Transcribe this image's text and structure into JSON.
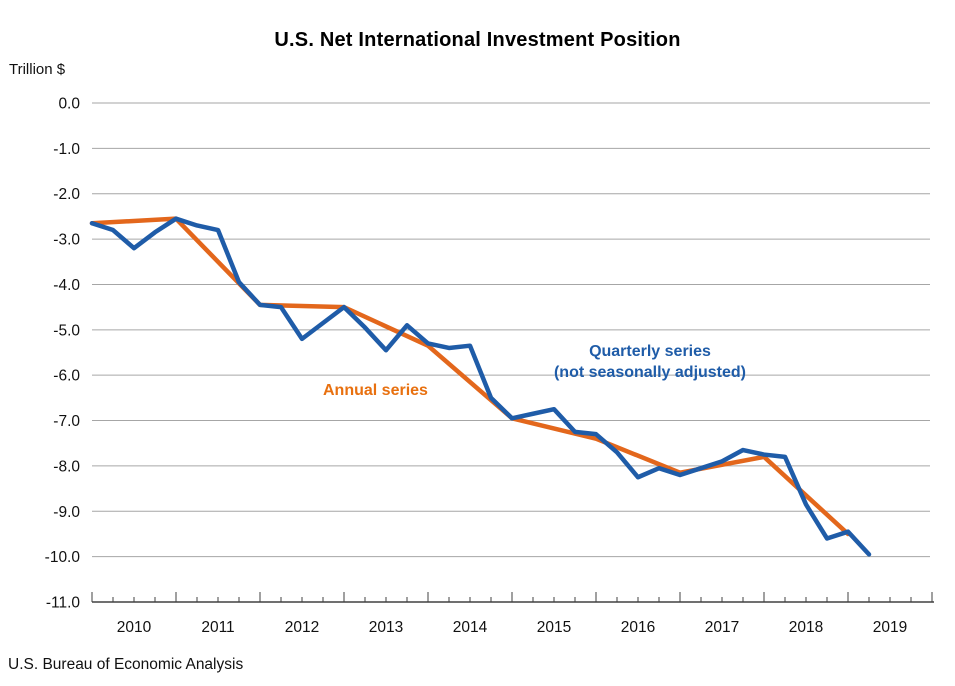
{
  "chart": {
    "title": "U.S. Net International Investment Position",
    "y_unit_label": "Trillion $",
    "source": "U.S. Bureau of Economic Analysis",
    "annual_label": "Annual series",
    "quarterly_label_line1": "Quarterly series",
    "quarterly_label_line2": "(not seasonally adjusted)"
  },
  "chart_data": {
    "type": "line",
    "title": "U.S. Net International Investment Position",
    "ylabel": "Trillion $",
    "ylim": [
      -11.0,
      0.0
    ],
    "y_ticks": [
      "0.0",
      "-1.0",
      "-2.0",
      "-3.0",
      "-4.0",
      "-5.0",
      "-6.0",
      "-7.0",
      "-8.0",
      "-9.0",
      "-10.0",
      "-11.0"
    ],
    "x_year_labels": [
      "2010",
      "2011",
      "2012",
      "2013",
      "2014",
      "2015",
      "2016",
      "2017",
      "2018",
      "2019"
    ],
    "grid": "horizontal-only",
    "legend_position": "inline-annotations",
    "source": "U.S. Bureau of Economic Analysis",
    "annotations": [
      {
        "text": "Annual series",
        "color": "#E8700F",
        "series": "annual"
      },
      {
        "text": "Quarterly series (not seasonally adjusted)",
        "color": "#1F5CA8",
        "series": "quarterly"
      }
    ],
    "series": [
      {
        "name": "Annual series",
        "frequency": "annual",
        "color": "#E3671C",
        "x_years": [
          2009,
          2010,
          2011,
          2012,
          2013,
          2014,
          2015,
          2016,
          2017,
          2018
        ],
        "values": [
          -2.65,
          -2.55,
          -4.45,
          -4.5,
          -5.35,
          -6.95,
          -7.4,
          -8.15,
          -7.8,
          -9.5
        ]
      },
      {
        "name": "Quarterly series (not seasonally adjusted)",
        "frequency": "quarterly",
        "color": "#1F5CA8",
        "x_quarters": [
          "2009Q4",
          "2010Q1",
          "2010Q2",
          "2010Q3",
          "2010Q4",
          "2011Q1",
          "2011Q2",
          "2011Q3",
          "2011Q4",
          "2012Q1",
          "2012Q2",
          "2012Q3",
          "2012Q4",
          "2013Q1",
          "2013Q2",
          "2013Q3",
          "2013Q4",
          "2014Q1",
          "2014Q2",
          "2014Q3",
          "2014Q4",
          "2015Q1",
          "2015Q2",
          "2015Q3",
          "2015Q4",
          "2016Q1",
          "2016Q2",
          "2016Q3",
          "2016Q4",
          "2017Q1",
          "2017Q2",
          "2017Q3",
          "2017Q4",
          "2018Q1",
          "2018Q2",
          "2018Q3",
          "2018Q4",
          "2019Q1"
        ],
        "values": [
          -2.65,
          -2.8,
          -3.2,
          -2.85,
          -2.55,
          -2.7,
          -2.8,
          -3.95,
          -4.45,
          -4.5,
          -5.2,
          -4.85,
          -4.5,
          -4.95,
          -5.45,
          -4.9,
          -5.3,
          -5.4,
          -5.35,
          -6.5,
          -6.95,
          -6.85,
          -6.75,
          -7.25,
          -7.3,
          -7.7,
          -8.25,
          -8.05,
          -8.2,
          -8.05,
          -7.9,
          -7.65,
          -7.75,
          -7.8,
          -8.85,
          -9.6,
          -9.45,
          -9.95
        ]
      }
    ]
  }
}
